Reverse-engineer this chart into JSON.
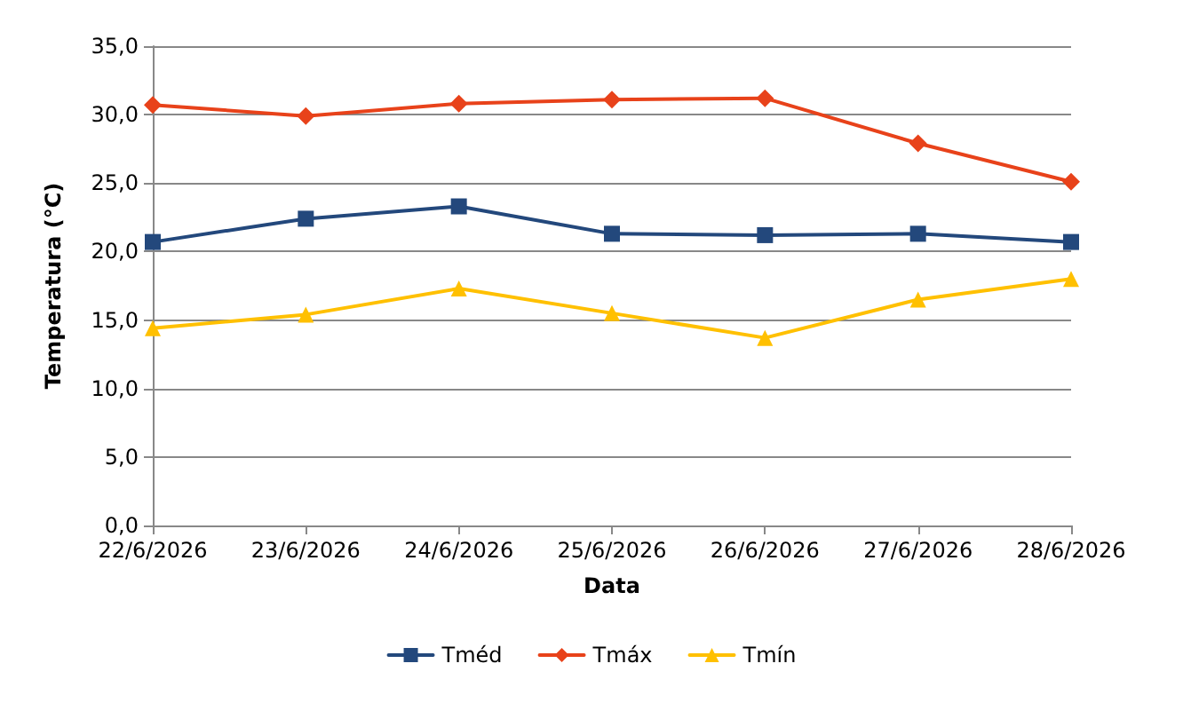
{
  "chart_data": {
    "type": "line",
    "xlabel": "Data",
    "ylabel": "Temperatura (°C)",
    "categories": [
      "22/6/2026",
      "23/6/2026",
      "24/6/2026",
      "25/6/2026",
      "26/6/2026",
      "27/6/2026",
      "28/6/2026"
    ],
    "series": [
      {
        "name": "Tméd",
        "color": "#23487c",
        "marker": "square",
        "values": [
          20.7,
          22.4,
          23.3,
          21.3,
          21.2,
          21.3,
          20.7
        ]
      },
      {
        "name": "Tmáx",
        "color": "#e8421a",
        "marker": "diamond",
        "values": [
          30.7,
          29.9,
          30.8,
          31.1,
          31.2,
          27.9,
          25.1
        ]
      },
      {
        "name": "Tmín",
        "color": "#ffc000",
        "marker": "triangle",
        "values": [
          14.4,
          15.4,
          17.3,
          15.5,
          13.7,
          16.5,
          18.0
        ]
      }
    ],
    "ylim": [
      0,
      35
    ],
    "yticks": [
      {
        "value": 0,
        "label": "0,0"
      },
      {
        "value": 5,
        "label": "5,0"
      },
      {
        "value": 10,
        "label": "10,0"
      },
      {
        "value": 15,
        "label": "15,0"
      },
      {
        "value": 20,
        "label": "20,0"
      },
      {
        "value": 25,
        "label": "25,0"
      },
      {
        "value": 30,
        "label": "30,0"
      },
      {
        "value": 35,
        "label": "35,0"
      }
    ],
    "grid": "y",
    "legend": "bottom",
    "line_style": "solid"
  }
}
